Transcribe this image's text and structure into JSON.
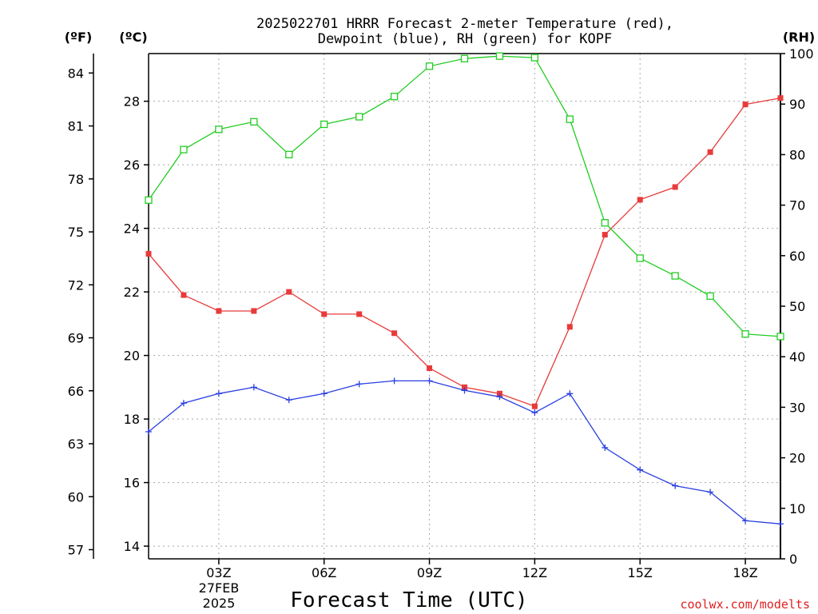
{
  "chart_data": {
    "type": "line",
    "title_line1": "2025022701 HRRR Forecast 2-meter Temperature (red),",
    "title_line2": "Dewpoint (blue), RH (green) for KOPF",
    "xlabel": "Forecast Time (UTC)",
    "credit": "coolwx.com/modelts",
    "axes": {
      "left_f": {
        "unit": "(ºF)",
        "ticks": [
          57,
          60,
          63,
          66,
          69,
          72,
          75,
          78,
          81,
          84
        ]
      },
      "left_c": {
        "unit": "(ºC)",
        "range": [
          13.6,
          29.5
        ],
        "ticks": [
          14,
          16,
          18,
          20,
          22,
          24,
          26,
          28
        ]
      },
      "right_rh": {
        "unit": "(RH)",
        "range": [
          0,
          100
        ],
        "ticks": [
          0,
          10,
          20,
          30,
          40,
          50,
          60,
          70,
          80,
          90,
          100
        ]
      }
    },
    "x_range_hours": [
      1,
      19
    ],
    "x_ticks": [
      {
        "hour": 3,
        "label": "03Z"
      },
      {
        "hour": 6,
        "label": "06Z"
      },
      {
        "hour": 9,
        "label": "09Z"
      },
      {
        "hour": 12,
        "label": "12Z"
      },
      {
        "hour": 15,
        "label": "15Z"
      },
      {
        "hour": 18,
        "label": "18Z"
      }
    ],
    "date_label": {
      "line1": "27FEB",
      "line2": "2025"
    },
    "hours": [
      1,
      2,
      3,
      4,
      5,
      6,
      7,
      8,
      9,
      10,
      11,
      12,
      13,
      14,
      15,
      16,
      17,
      18,
      19
    ],
    "series": [
      {
        "name": "Temperature",
        "axis": "left_c",
        "color": "#e83a3a",
        "marker": "filled-square",
        "values": [
          23.2,
          21.9,
          21.4,
          21.4,
          22.0,
          21.3,
          21.3,
          20.7,
          19.6,
          19.0,
          18.8,
          18.4,
          20.9,
          23.8,
          24.9,
          25.3,
          26.4,
          27.9,
          28.1
        ]
      },
      {
        "name": "Dewpoint",
        "axis": "left_c",
        "color": "#2a3fe0",
        "marker": "plus",
        "values": [
          17.6,
          18.5,
          18.8,
          19.0,
          18.6,
          18.8,
          19.1,
          19.2,
          19.2,
          18.9,
          18.7,
          18.2,
          18.8,
          17.1,
          16.4,
          15.9,
          15.7,
          14.8,
          14.7
        ]
      },
      {
        "name": "RH",
        "axis": "right_rh",
        "color": "#22cc22",
        "marker": "open-square",
        "values": [
          71,
          81,
          85,
          86.5,
          80,
          86,
          87.5,
          91.5,
          97.5,
          99,
          99.5,
          99.2,
          87,
          66.5,
          59.5,
          56,
          52,
          44.5,
          44
        ]
      }
    ]
  }
}
